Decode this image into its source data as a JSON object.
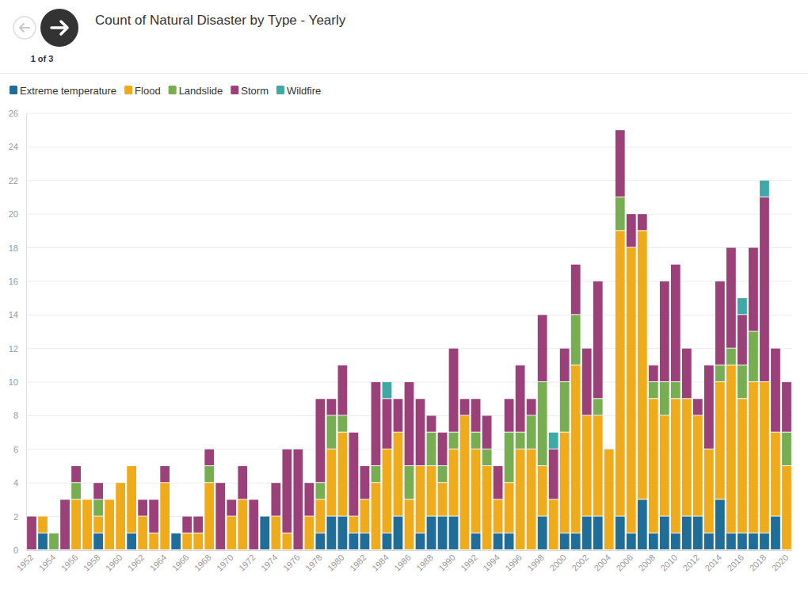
{
  "pager": "1 of 3",
  "chart_data": {
    "type": "bar",
    "title": "Count of Natural Disaster by Type - Yearly",
    "stacked": true,
    "grid": true,
    "legend": "top-left",
    "categories": [
      "1952",
      null,
      "1954",
      null,
      "1956",
      null,
      "1958",
      null,
      "1960",
      null,
      "1962",
      null,
      "1964",
      null,
      "1966",
      null,
      "1968",
      null,
      "1970",
      null,
      "1972",
      null,
      "1974",
      null,
      "1976",
      null,
      "1978",
      null,
      "1980",
      null,
      "1982",
      null,
      "1984",
      null,
      "1986",
      null,
      "1988",
      null,
      "1990",
      null,
      "1992",
      null,
      "1994",
      null,
      "1996",
      null,
      "1998",
      null,
      "2000",
      null,
      "2002",
      null,
      "2004",
      null,
      "2006",
      null,
      "2008",
      null,
      "2010",
      null,
      "2012",
      null,
      "2014",
      null,
      "2016",
      null,
      "2018",
      null,
      "2020"
    ],
    "ylim": [
      0,
      26
    ],
    "yticks": [
      0,
      2,
      4,
      6,
      8,
      10,
      12,
      14,
      16,
      18,
      20,
      22,
      24,
      26
    ],
    "series": [
      {
        "name": "Extreme temperature",
        "color": "#1f6d99",
        "values": [
          0,
          1,
          0,
          0,
          0,
          0,
          1,
          0,
          0,
          1,
          0,
          0,
          0,
          1,
          0,
          0,
          0,
          0,
          0,
          0,
          0,
          2,
          0,
          0,
          0,
          0,
          1,
          2,
          2,
          1,
          1,
          0,
          1,
          2,
          0,
          1,
          2,
          2,
          2,
          0,
          1,
          0,
          1,
          1,
          0,
          0,
          2,
          0,
          1,
          1,
          2,
          2,
          0,
          2,
          1,
          3,
          1,
          2,
          1,
          2,
          2,
          1,
          3,
          1,
          1,
          1,
          1,
          2,
          0
        ]
      },
      {
        "name": "Flood",
        "color": "#f0ab1a",
        "values": [
          0,
          1,
          0,
          0,
          3,
          3,
          1,
          3,
          4,
          4,
          2,
          1,
          4,
          0,
          1,
          1,
          4,
          0,
          2,
          3,
          0,
          0,
          2,
          1,
          0,
          2,
          2,
          4,
          5,
          1,
          2,
          4,
          5,
          5,
          3,
          4,
          3,
          2,
          4,
          8,
          5,
          5,
          2,
          3,
          6,
          6,
          3,
          3,
          6,
          10,
          6,
          6,
          6,
          17,
          17,
          16,
          8,
          6,
          8,
          7,
          6,
          5,
          7,
          10,
          8,
          9,
          9,
          5,
          5
        ]
      },
      {
        "name": "Landslide",
        "color": "#76ae51",
        "values": [
          0,
          0,
          1,
          0,
          1,
          0,
          1,
          0,
          0,
          0,
          0,
          0,
          0,
          0,
          0,
          0,
          1,
          0,
          0,
          0,
          0,
          0,
          0,
          0,
          0,
          0,
          1,
          2,
          1,
          0,
          0,
          1,
          0,
          0,
          2,
          0,
          2,
          1,
          1,
          0,
          1,
          1,
          0,
          3,
          1,
          2,
          5,
          0,
          3,
          3,
          0,
          1,
          0,
          2,
          0,
          0,
          1,
          2,
          1,
          0,
          0,
          0,
          1,
          1,
          2,
          3,
          0,
          0,
          2
        ]
      },
      {
        "name": "Storm",
        "color": "#9b4078",
        "values": [
          2,
          0,
          0,
          3,
          1,
          0,
          1,
          0,
          0,
          0,
          1,
          2,
          1,
          0,
          1,
          1,
          1,
          4,
          1,
          2,
          3,
          0,
          2,
          5,
          6,
          2,
          5,
          1,
          3,
          5,
          2,
          5,
          3,
          2,
          5,
          4,
          1,
          2,
          5,
          1,
          2,
          2,
          2,
          2,
          4,
          1,
          4,
          3,
          2,
          3,
          4,
          7,
          0,
          4,
          2,
          1,
          1,
          6,
          7,
          3,
          1,
          5,
          5,
          6,
          3,
          5,
          11,
          5,
          3
        ]
      },
      {
        "name": "Wildfire",
        "color": "#3ea9a6",
        "values": [
          0,
          0,
          0,
          0,
          0,
          0,
          0,
          0,
          0,
          0,
          0,
          0,
          0,
          0,
          0,
          0,
          0,
          0,
          0,
          0,
          0,
          0,
          0,
          0,
          0,
          0,
          0,
          0,
          0,
          0,
          0,
          0,
          1,
          0,
          0,
          0,
          0,
          0,
          0,
          0,
          0,
          0,
          0,
          0,
          0,
          0,
          0,
          1,
          0,
          0,
          0,
          0,
          0,
          0,
          0,
          0,
          0,
          0,
          0,
          0,
          0,
          0,
          0,
          0,
          1,
          0,
          1,
          0,
          0
        ]
      }
    ]
  }
}
